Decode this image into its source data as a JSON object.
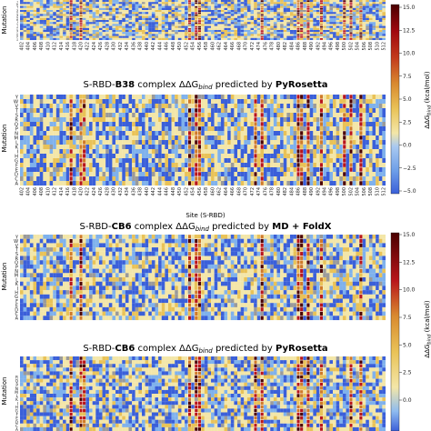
{
  "colors": {
    "neg_strong": "#3a5fd9",
    "neg_light": "#7fb1ec",
    "neutral": "#f3e6a8",
    "pos_light": "#e9c257",
    "pos_mid": "#d07a28",
    "pos_strong": "#b8151a",
    "pos_extreme": "#4a0000",
    "missing": "#9a9a9a",
    "grid": "#ffffff"
  },
  "chart_data": [
    {
      "type": "heatmap",
      "title": "",
      "ylabel": "Mutation",
      "xlabel": "",
      "rows": "YWVTSRQPNMLKIHGFEDCA",
      "row_labels_visible": "YWVTSRQPNMLKIHGFEDCA",
      "sites": [
        402,
        403,
        404,
        405,
        406,
        407,
        408,
        409,
        410,
        411,
        412,
        413,
        414,
        415,
        416,
        417,
        418,
        419,
        420,
        421,
        422,
        423,
        424,
        425,
        426,
        427,
        428,
        429,
        430,
        431,
        432,
        433,
        434,
        435,
        436,
        437,
        438,
        439,
        440,
        441,
        442,
        443,
        444,
        445,
        446,
        447,
        448,
        449,
        450,
        451,
        452,
        453,
        454,
        455,
        456,
        457,
        458,
        459,
        460,
        461,
        462,
        463,
        464,
        465,
        466,
        467,
        468,
        469,
        470,
        471,
        472,
        473,
        474,
        475,
        476,
        477,
        478,
        479,
        480,
        481,
        482,
        483,
        484,
        485,
        486,
        487,
        488,
        489,
        490,
        491,
        492,
        493,
        494,
        495,
        496,
        497,
        498,
        499,
        500,
        501,
        502,
        503,
        504,
        505,
        506,
        507,
        508,
        509,
        510,
        511,
        512
      ],
      "tick_labels": [
        "402",
        "404",
        "406",
        "408",
        "410",
        "412",
        "414",
        "416",
        "418",
        "420",
        "422",
        "424",
        "426",
        "428",
        "430",
        "432",
        "434",
        "436",
        "438",
        "440",
        "442",
        "444",
        "446",
        "448",
        "450",
        "452",
        "454",
        "456",
        "458",
        "460",
        "462",
        "464",
        "466",
        "468",
        "470",
        "472",
        "474",
        "476",
        "478",
        "480",
        "482",
        "484",
        "486",
        "488",
        "490",
        "492",
        "494",
        "496",
        "498",
        "500",
        "502",
        "504",
        "506",
        "508",
        "510",
        "512"
      ],
      "hot_sites": [
        417,
        420,
        453,
        455,
        456,
        475,
        486,
        487,
        489,
        493,
        500,
        502,
        505
      ],
      "value_range": [
        -5.0,
        15.0
      ],
      "colorbar": "top",
      "seed": 11
    },
    {
      "type": "heatmap",
      "title_prefix": "S-RBD-",
      "title_bold_1": "B38",
      "title_mid": " complex ΔΔG",
      "title_sub": "bind",
      "title_mid2": " predicted by ",
      "title_bold_2": "PyRosetta",
      "ylabel": "Mutation",
      "xlabel": "Site (S-RBD)",
      "rows": "YWVTSRQPNMLKIHGFEDCA",
      "row_labels_visible": "YWVTSRQPNMLKIHGFEDCA",
      "hot_sites": [
        417,
        420,
        421,
        453,
        455,
        456,
        473,
        475,
        486,
        487,
        489,
        493,
        500,
        502,
        505
      ],
      "value_range": [
        -5.0,
        15.0
      ],
      "colorbar": "top",
      "seed": 23
    },
    {
      "type": "heatmap",
      "title_prefix": "S-RBD-",
      "title_bold_1": "CB6",
      "title_mid": " complex ΔΔG",
      "title_sub": "bind",
      "title_mid2": " predicted by ",
      "title_bold_2": "MD + FoldX",
      "ylabel": "Mutation",
      "xlabel": "",
      "rows": "YWVTSRQPNMLKIHGFEDCA",
      "row_labels_visible": "YWVTSRQPNMLKIHGFEDCA",
      "hot_sites": [
        417,
        420,
        453,
        455,
        456,
        475,
        486,
        487,
        489,
        493,
        505
      ],
      "value_range": [
        -5.0,
        15.0
      ],
      "colorbar": "bottom",
      "seed": 37
    },
    {
      "type": "heatmap",
      "title_prefix": "S-RBD-",
      "title_bold_1": "CB6",
      "title_mid": " complex ΔΔG",
      "title_sub": "bind",
      "title_mid2": " predicted by ",
      "title_bold_2": "PyRosetta",
      "ylabel": "Mutation",
      "xlabel": "",
      "rows": "YWVTSRQPNMLKIHGFEDCA",
      "row_labels_visible": "RQPNMLKIHGFEDCA",
      "hot_sites": [
        417,
        420,
        421,
        453,
        455,
        456,
        473,
        475,
        486,
        487,
        489,
        493,
        502,
        505
      ],
      "value_range": [
        -5.0,
        15.0
      ],
      "colorbar": "bottom",
      "seed": 53
    }
  ],
  "colorbar_top": {
    "label_main": "ΔΔG",
    "label_sub": "bind",
    "label_unit": " (kcal/mol)",
    "ticks": [
      "15.0",
      "12.5",
      "10.0",
      "7.5",
      "5.0",
      "2.5",
      "0.0",
      "−2.5",
      "−5.0"
    ],
    "tick_values": [
      15.0,
      12.5,
      10.0,
      7.5,
      5.0,
      2.5,
      0.0,
      -2.5,
      -5.0
    ]
  },
  "colorbar_bottom": {
    "label_main": "ΔΔG",
    "label_sub": "bind",
    "label_unit": " (kcal/mol)",
    "ticks": [
      "15.0",
      "12.5",
      "10.0",
      "7.5",
      "5.0",
      "2.5",
      "0.0"
    ],
    "tick_values": [
      15.0,
      12.5,
      10.0,
      7.5,
      5.0,
      2.5,
      0.0
    ]
  }
}
